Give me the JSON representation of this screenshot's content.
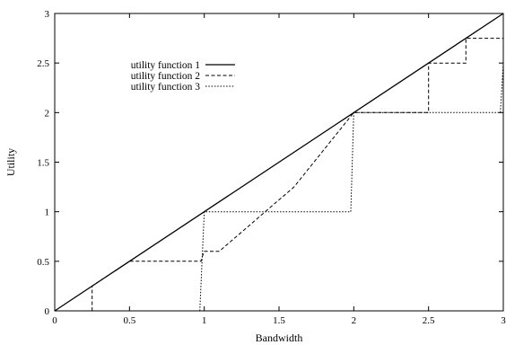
{
  "chart_data": {
    "type": "line",
    "xlabel": "Bandwidth",
    "ylabel": "Utility",
    "xlim": [
      0,
      3
    ],
    "ylim": [
      0,
      3
    ],
    "x_ticks": [
      "0",
      "0.5",
      "1",
      "1.5",
      "2",
      "2.5",
      "3"
    ],
    "y_ticks": [
      "0",
      "0.5",
      "1",
      "1.5",
      "2",
      "2.5",
      "3"
    ],
    "grid": false,
    "legend_position": "upper-left",
    "series": [
      {
        "name": "utility function 1",
        "style": "solid",
        "points": [
          [
            0,
            0
          ],
          [
            3,
            3
          ]
        ]
      },
      {
        "name": "utility function 2",
        "style": "dashed",
        "points": [
          [
            0.25,
            0
          ],
          [
            0.25,
            0.25
          ],
          [
            0.5,
            0.5
          ],
          [
            0.98,
            0.5
          ],
          [
            0.98,
            0.52
          ],
          [
            1.0,
            0.6
          ],
          [
            1.1,
            0.6
          ],
          [
            1.6,
            1.25
          ],
          [
            2.0,
            2.0
          ],
          [
            2.5,
            2.0
          ],
          [
            2.5,
            2.5
          ],
          [
            2.75,
            2.5
          ],
          [
            2.75,
            2.75
          ],
          [
            3.0,
            2.75
          ]
        ]
      },
      {
        "name": "utility function 3",
        "style": "dotted",
        "points": [
          [
            0.97,
            0
          ],
          [
            1.0,
            1.0
          ],
          [
            1.98,
            1.0
          ],
          [
            2.0,
            2.0
          ],
          [
            2.98,
            2.0
          ],
          [
            3.0,
            2.5
          ]
        ]
      }
    ]
  }
}
